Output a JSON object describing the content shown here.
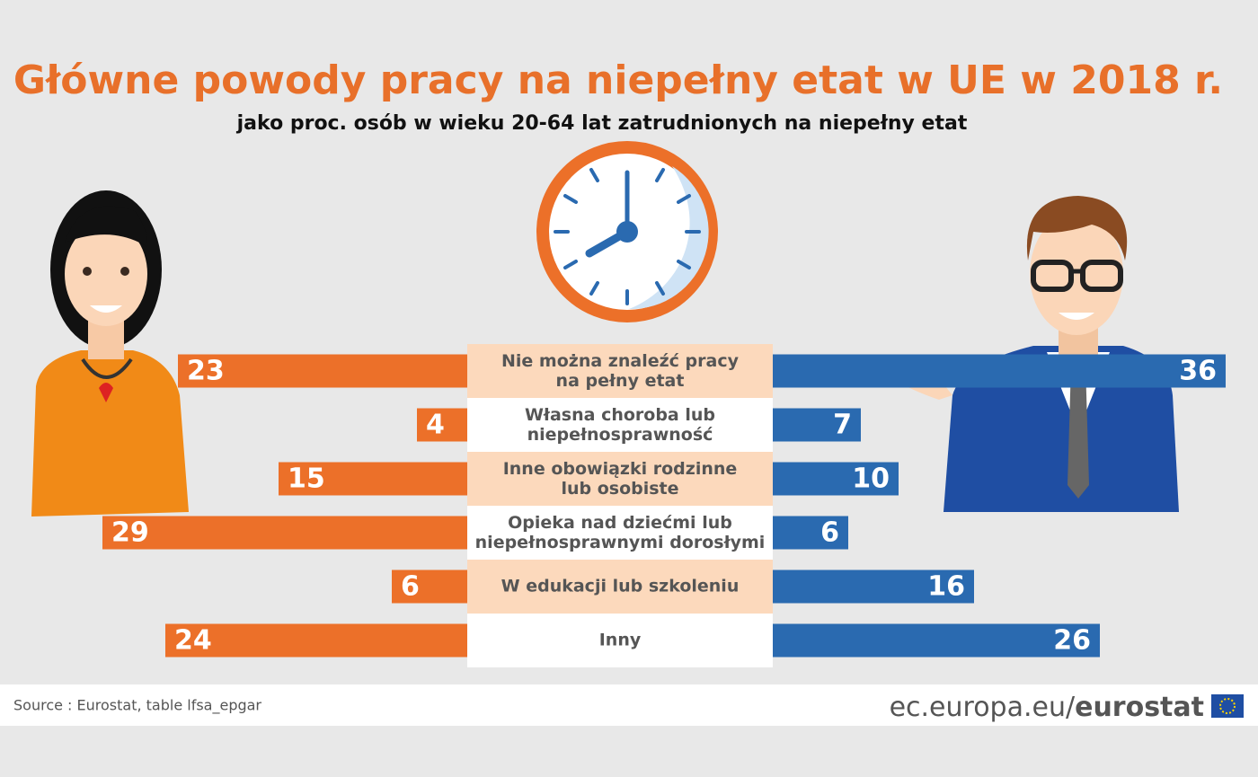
{
  "chart_data": {
    "type": "butterfly",
    "title": "Główne powody pracy na niepełny etat w UE w 2018 r.",
    "subtitle": "jako proc. osób w wieku 20-64 lat zatrudnionych na niepełny etat",
    "categories": [
      "Nie można znaleźć pracy\nna pełny etat",
      "Własna choroba lub\nniepełnosprawność",
      "Inne obowiązki rodzinne\nlub osobiste",
      "Opieka nad dziećmi lub\nniepełnosprawnymi dorosłymi",
      "W edukacji lub szkoleniu",
      "Inny"
    ],
    "series": [
      {
        "color": "#ec7029",
        "side": "left",
        "values": [
          23,
          4,
          15,
          29,
          6,
          24
        ]
      },
      {
        "color": "#2a6ab0",
        "side": "right",
        "values": [
          36,
          7,
          10,
          6,
          16,
          26
        ]
      }
    ],
    "source": "Source : Eurostat, table lfsa_epgar",
    "site": "ec.europa.eu/",
    "brand": "eurostat"
  }
}
